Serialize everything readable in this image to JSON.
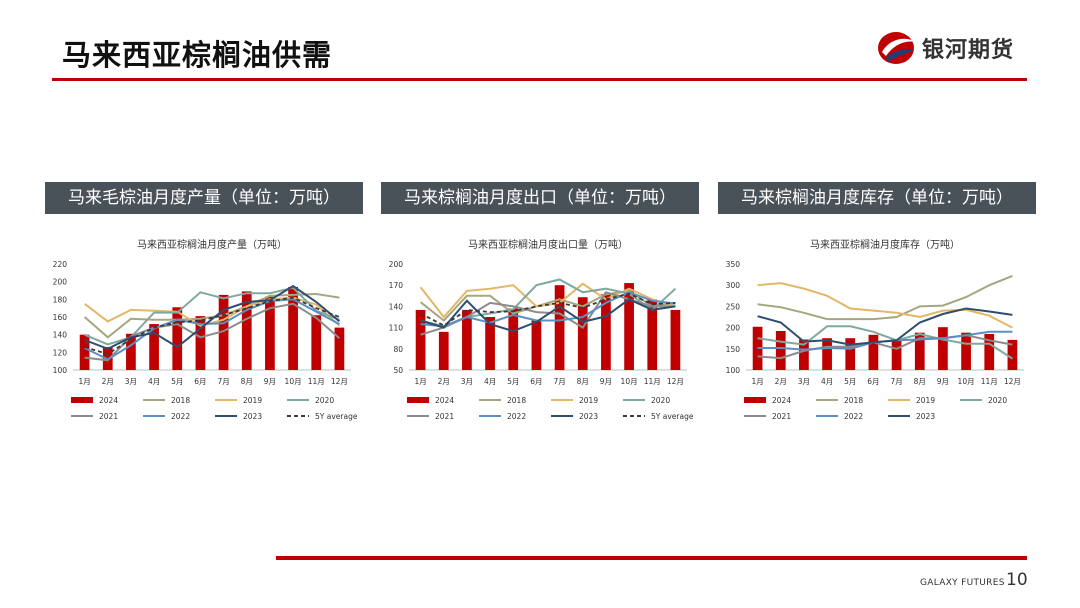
{
  "page": {
    "title": "马来西亚棕榈油供需",
    "logo_text": "银河期货",
    "footer_brand": "GALAXY FUTURES",
    "page_number": "10"
  },
  "colors": {
    "accent_red": "#c00000",
    "header_bg": "#4a5259",
    "series": {
      "2024": "#c00000",
      "2018": "#a3a87f",
      "2019": "#e3b765",
      "2020": "#7fa8a0",
      "2021": "#8c8c8c",
      "2022": "#5b8fc0",
      "2023": "#2f4d6e",
      "5Y average": "#3a3a3a"
    }
  },
  "panels": [
    {
      "header": "马来毛棕油月度产量（单位：万吨）"
    },
    {
      "header": "马来棕榈油月度出口（单位：万吨）"
    },
    {
      "header": "马来棕榈油月度库存（单位：万吨）"
    }
  ],
  "chart_data": [
    {
      "type": "bar",
      "title": "马来西亚棕榈油月度产量（万吨）",
      "categories": [
        "1月",
        "2月",
        "3月",
        "4月",
        "5月",
        "6月",
        "7月",
        "8月",
        "9月",
        "10月",
        "11月",
        "12月"
      ],
      "ylim": [
        100,
        220
      ],
      "yticks": [
        100,
        120,
        140,
        160,
        180,
        200,
        220
      ],
      "legend_position": "bottom",
      "bar_series": {
        "name": "2024",
        "values": [
          140,
          126,
          141,
          152,
          171,
          161,
          185,
          189,
          183,
          194,
          162,
          148
        ]
      },
      "line_series": [
        {
          "name": "2018",
          "values": [
            160,
            137,
            158,
            157,
            157,
            158,
            162,
            172,
            184,
            185,
            186,
            182
          ]
        },
        {
          "name": "2019",
          "values": [
            175,
            155,
            168,
            167,
            166,
            150,
            157,
            172,
            180,
            182,
            174,
            150
          ]
        },
        {
          "name": "2020",
          "values": [
            140,
            129,
            137,
            165,
            165,
            188,
            181,
            187,
            187,
            193,
            167,
            157
          ]
        },
        {
          "name": "2021",
          "values": [
            114,
            111,
            138,
            148,
            152,
            137,
            144,
            158,
            170,
            175,
            159,
            136
          ]
        },
        {
          "name": "2022",
          "values": [
            125,
            112,
            128,
            147,
            157,
            152,
            153,
            168,
            178,
            180,
            166,
            152
          ]
        },
        {
          "name": "2023",
          "values": [
            134,
            124,
            137,
            142,
            126,
            147,
            168,
            177,
            179,
            195,
            177,
            155
          ]
        },
        {
          "name": "5Y average",
          "dashed": true,
          "values": [
            126,
            118,
            135,
            148,
            154,
            156,
            162,
            170,
            178,
            182,
            170,
            160
          ]
        }
      ]
    },
    {
      "type": "bar",
      "title": "马来西亚棕榈油月度出口量（万吨）",
      "categories": [
        "1月",
        "2月",
        "3月",
        "4月",
        "5月",
        "6月",
        "7月",
        "8月",
        "9月",
        "10月",
        "11月",
        "12月"
      ],
      "ylim": [
        50,
        200
      ],
      "yticks": [
        50,
        80,
        110,
        140,
        170,
        200
      ],
      "legend_position": "bottom",
      "bar_series": {
        "name": "2024",
        "values": [
          135,
          104,
          135,
          125,
          137,
          120,
          170,
          153,
          157,
          173,
          150,
          135
        ]
      },
      "line_series": [
        {
          "name": "2018",
          "values": [
            146,
            120,
            155,
            155,
            130,
            140,
            150,
            140,
            157,
            162,
            140,
            145
          ]
        },
        {
          "name": "2019",
          "values": [
            167,
            125,
            162,
            165,
            170,
            140,
            145,
            172,
            150,
            165,
            150,
            140
          ]
        },
        {
          "name": "2020",
          "values": [
            120,
            112,
            125,
            130,
            136,
            170,
            178,
            160,
            165,
            158,
            135,
            165
          ]
        },
        {
          "name": "2021",
          "values": [
            100,
            110,
            125,
            145,
            140,
            132,
            130,
            110,
            160,
            150,
            140,
            140
          ]
        },
        {
          "name": "2022",
          "values": [
            115,
            112,
            125,
            117,
            128,
            120,
            120,
            125,
            145,
            160,
            148,
            144
          ]
        },
        {
          "name": "2023",
          "values": [
            120,
            110,
            148,
            115,
            105,
            118,
            140,
            118,
            126,
            150,
            135,
            140
          ]
        },
        {
          "name": "5Y average",
          "dashed": true,
          "values": [
            130,
            113,
            135,
            132,
            133,
            140,
            145,
            138,
            150,
            158,
            143,
            145
          ]
        }
      ]
    },
    {
      "type": "bar",
      "title": "马来西亚棕榈油月度库存（万吨）",
      "categories": [
        "1月",
        "2月",
        "3月",
        "4月",
        "5月",
        "6月",
        "7月",
        "8月",
        "9月",
        "10月",
        "11月",
        "12月"
      ],
      "ylim": [
        100,
        350
      ],
      "yticks": [
        100,
        150,
        200,
        250,
        300,
        350
      ],
      "legend_position": "bottom",
      "bar_series": {
        "name": "2024",
        "values": [
          202,
          192,
          172,
          175,
          175,
          183,
          173,
          188,
          201,
          188,
          185,
          171
        ]
      },
      "line_series": [
        {
          "name": "2018",
          "values": [
            255,
            248,
            235,
            220,
            220,
            220,
            225,
            250,
            252,
            272,
            300,
            322
          ]
        },
        {
          "name": "2019",
          "values": [
            300,
            305,
            292,
            275,
            245,
            240,
            235,
            225,
            240,
            242,
            228,
            200
          ]
        },
        {
          "name": "2020",
          "values": [
            175,
            167,
            160,
            203,
            203,
            190,
            170,
            185,
            172,
            162,
            162,
            127
          ]
        },
        {
          "name": "2021",
          "values": [
            132,
            128,
            145,
            155,
            155,
            165,
            150,
            175,
            175,
            182,
            170,
            160
          ]
        },
        {
          "name": "2022",
          "values": [
            152,
            152,
            148,
            152,
            150,
            165,
            170,
            172,
            175,
            182,
            190,
            190
          ]
        },
        {
          "name": "2023",
          "values": [
            227,
            212,
            167,
            170,
            160,
            165,
            170,
            212,
            232,
            245,
            238,
            230
          ]
        }
      ]
    }
  ]
}
